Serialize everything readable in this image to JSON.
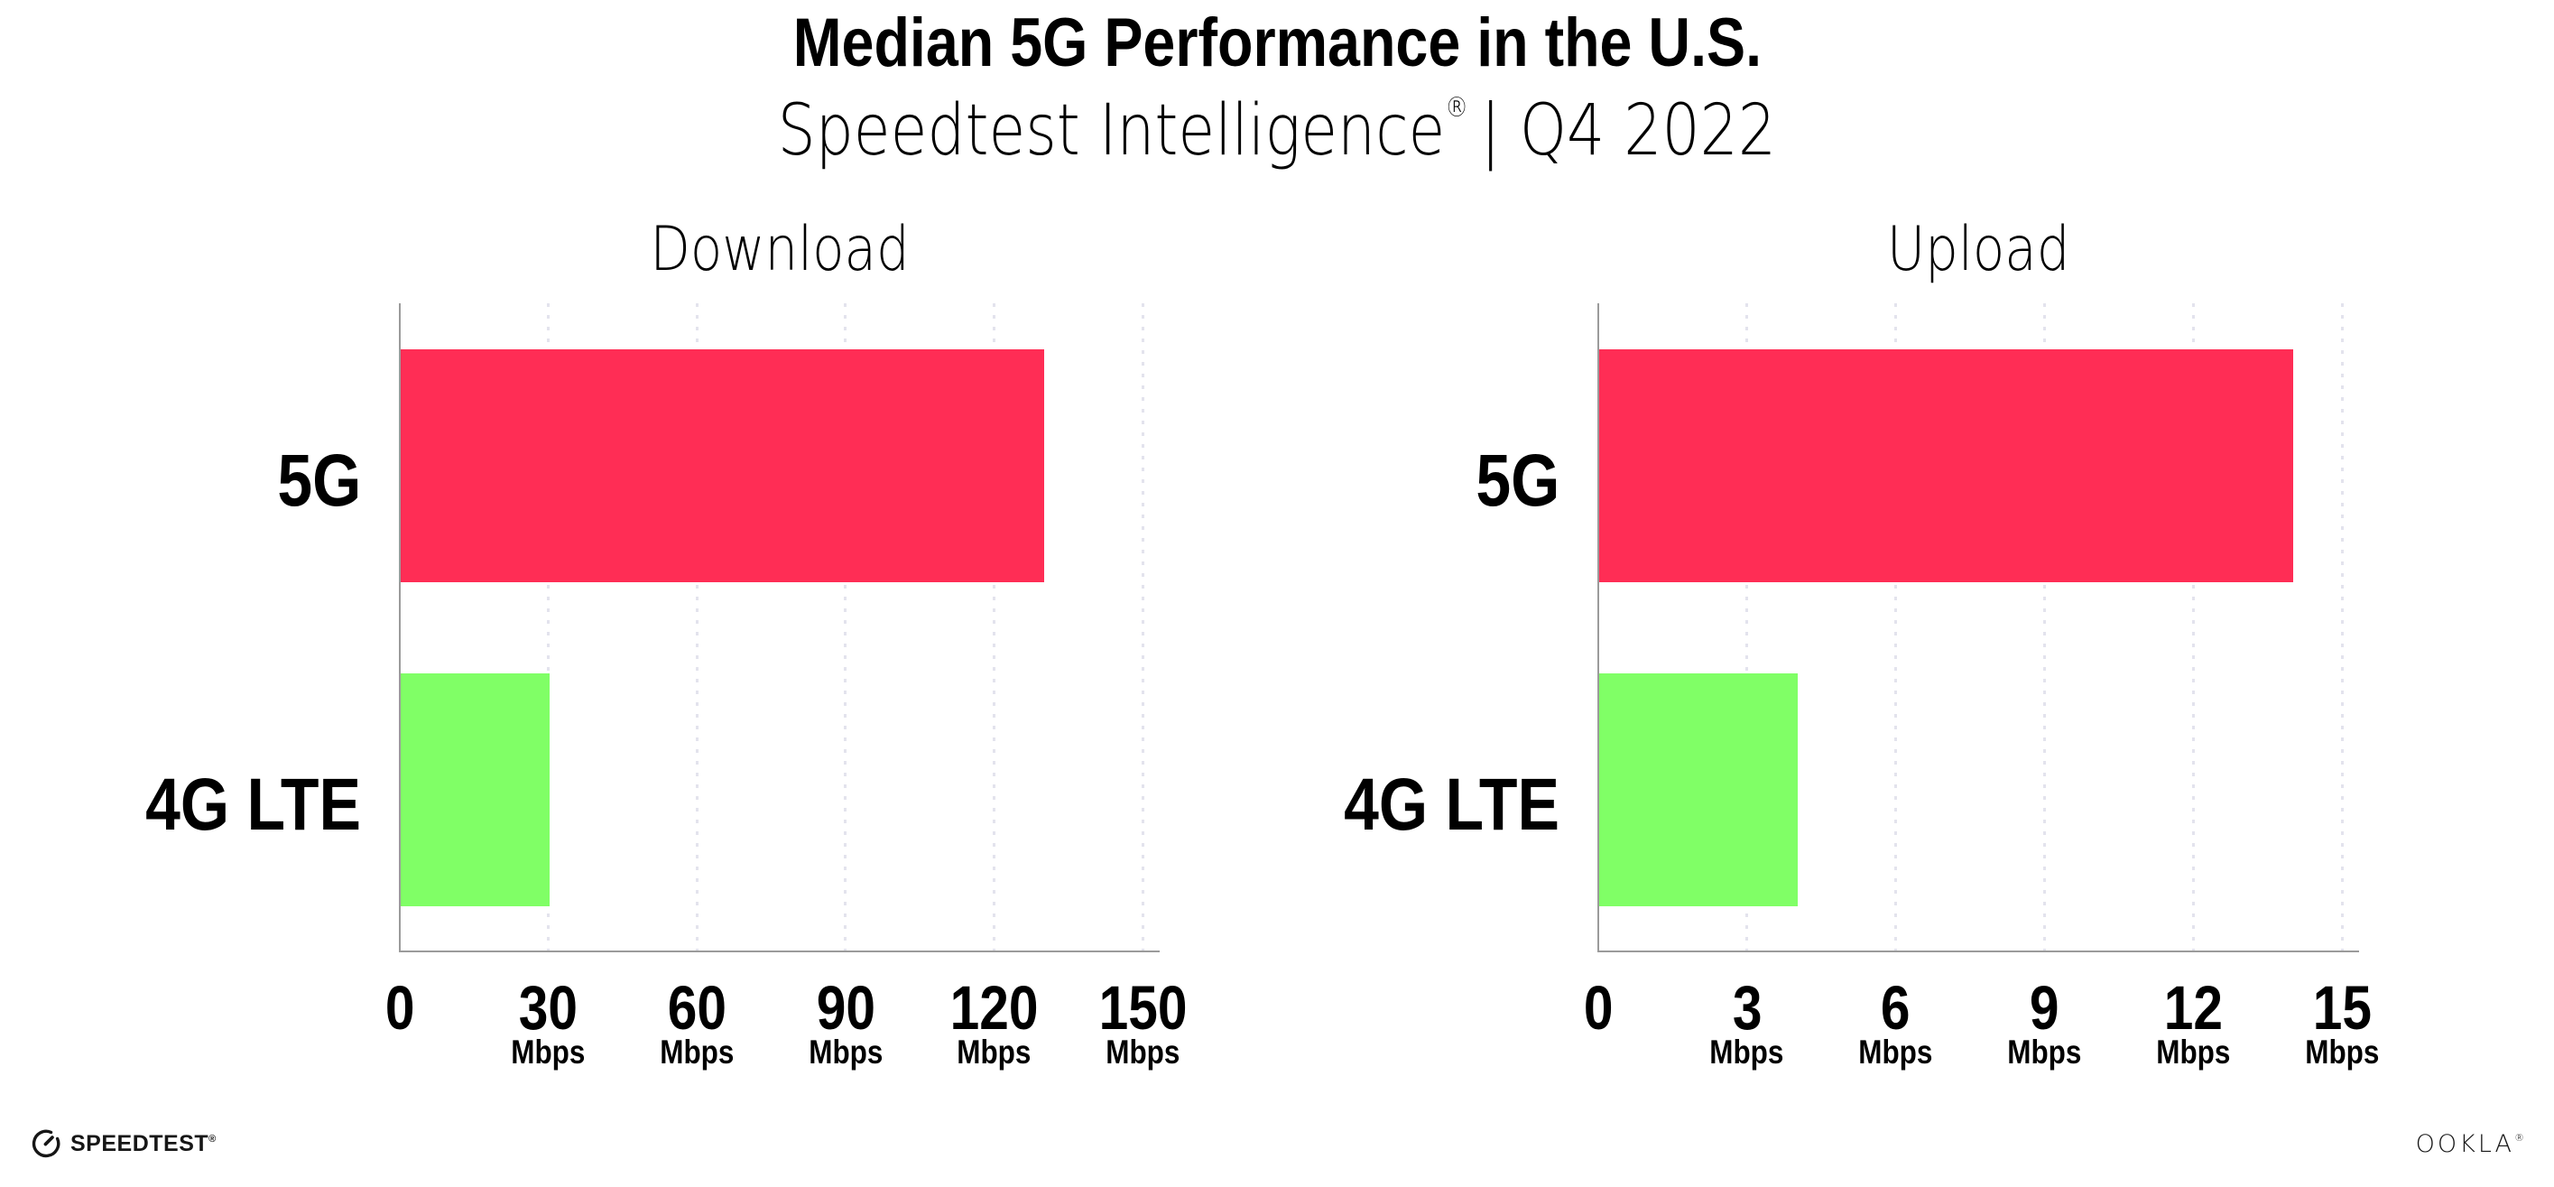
{
  "title": "Median 5G Performance in the U.S.",
  "subtitle": {
    "brand": "Speedtest Intelligence",
    "reg": "®",
    "rest": "| Q4 2022"
  },
  "series_colors": {
    "5G": "#FF2D55",
    "4G LTE": "#80FF66"
  },
  "axis_color": "#9B9B9B",
  "grid_color": "#E3E3ED",
  "chart_data": [
    {
      "type": "bar",
      "orientation": "horizontal",
      "title": "Download",
      "unit": "Mbps",
      "categories": [
        "5G",
        "4G LTE"
      ],
      "values": [
        130,
        30
      ],
      "xlim": [
        0,
        150
      ],
      "xticks": [
        0,
        30,
        60,
        90,
        120,
        150
      ],
      "grid": "dotted-vertical",
      "legend": "none"
    },
    {
      "type": "bar",
      "orientation": "horizontal",
      "title": "Upload",
      "unit": "Mbps",
      "categories": [
        "5G",
        "4G LTE"
      ],
      "values": [
        14,
        4
      ],
      "xlim": [
        0,
        15
      ],
      "xticks": [
        0,
        3,
        6,
        9,
        12,
        15
      ],
      "grid": "dotted-vertical",
      "legend": "none"
    }
  ],
  "footer": {
    "speedtest_label": "SPEEDTEST",
    "speedtest_reg": "®",
    "ookla_label": "OOKLA",
    "ookla_reg": "®"
  }
}
